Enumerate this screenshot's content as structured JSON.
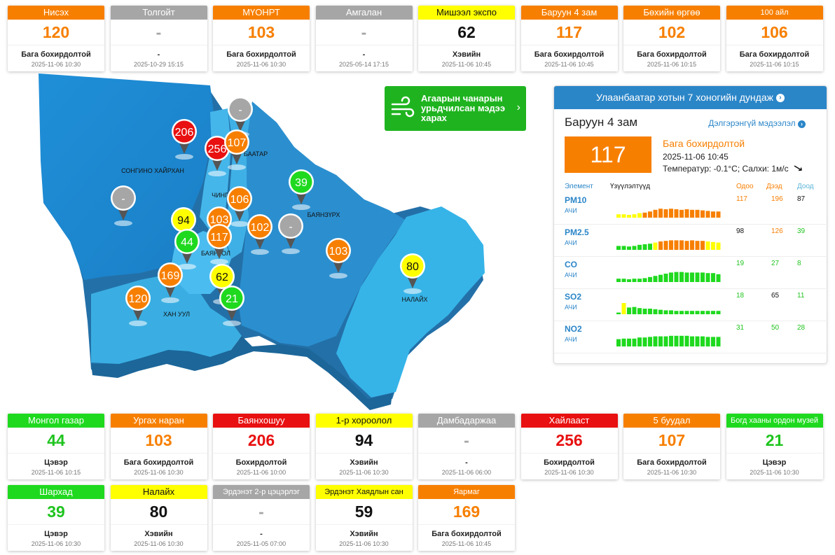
{
  "colors": {
    "good": "#1fd91f",
    "moderate": "#ffff00",
    "low": "#f77f00",
    "unhealthy": "#e81010",
    "nodata": "#a6a6a6"
  },
  "top_cards": [
    {
      "name": "Нисэх",
      "value": "120",
      "status": "Бага бохирдолтой",
      "time": "2025-11-06 10:30",
      "level": "low"
    },
    {
      "name": "Толгойт",
      "value": "-",
      "status": "-",
      "time": "2025-10-29 15:15",
      "level": "nodata"
    },
    {
      "name": "МҮОНРТ",
      "value": "103",
      "status": "Бага бохирдолтой",
      "time": "2025-11-06 10:30",
      "level": "low"
    },
    {
      "name": "Амгалан",
      "value": "-",
      "status": "-",
      "time": "2025-05-14 17:15",
      "level": "nodata"
    },
    {
      "name": "Мишээл экспо",
      "value": "62",
      "status": "Хэвийн",
      "time": "2025-11-06 10:45",
      "level": "moderate"
    },
    {
      "name": "Баруун 4 зам",
      "value": "117",
      "status": "Бага бохирдолтой",
      "time": "2025-11-06 10:45",
      "level": "low"
    },
    {
      "name": "Бөхийн өргөө",
      "value": "102",
      "status": "Бага бохирдолтой",
      "time": "2025-11-06 10:15",
      "level": "low"
    },
    {
      "name": "100 айл",
      "value": "106",
      "status": "Бага бохирдолтой",
      "time": "2025-11-06 10:15",
      "level": "low"
    }
  ],
  "bottom_cards_row1": [
    {
      "name": "Монгол газар",
      "value": "44",
      "status": "Цэвэр",
      "time": "2025-11-06 10:15",
      "level": "good"
    },
    {
      "name": "Ургах наран",
      "value": "103",
      "status": "Бага бохирдолтой",
      "time": "2025-11-06 10:30",
      "level": "low"
    },
    {
      "name": "Баянхошуу",
      "value": "206",
      "status": "Бохирдолтой",
      "time": "2025-11-06 10:00",
      "level": "unhealthy"
    },
    {
      "name": "1-р хороолол",
      "value": "94",
      "status": "Хэвийн",
      "time": "2025-11-06 10:30",
      "level": "moderate"
    },
    {
      "name": "Дамбадаржаа",
      "value": "-",
      "status": "-",
      "time": "2025-11-06 06:00",
      "level": "nodata"
    },
    {
      "name": "Хайлааст",
      "value": "256",
      "status": "Бохирдолтой",
      "time": "2025-11-06 10:30",
      "level": "unhealthy"
    },
    {
      "name": "5 буудал",
      "value": "107",
      "status": "Бага бохирдолтой",
      "time": "2025-11-06 10:30",
      "level": "low"
    },
    {
      "name": "Богд хааны ордон музей",
      "value": "21",
      "status": "Цэвэр",
      "time": "2025-11-06 10:30",
      "level": "good"
    }
  ],
  "bottom_cards_row2": [
    {
      "name": "Шархад",
      "value": "39",
      "status": "Цэвэр",
      "time": "2025-11-06 10:30",
      "level": "good"
    },
    {
      "name": "Налайх",
      "value": "80",
      "status": "Хэвийн",
      "time": "2025-11-06 10:30",
      "level": "moderate"
    },
    {
      "name": "Эрдэнэт 2-р цэцэрлэг",
      "value": "-",
      "status": "-",
      "time": "2025-11-05 07:00",
      "level": "nodata"
    },
    {
      "name": "Эрдэнэт Хаядлын сан",
      "value": "59",
      "status": "Хэвийн",
      "time": "2025-11-06 10:30",
      "level": "moderate"
    },
    {
      "name": "Яармаг",
      "value": "169",
      "status": "Бага бохирдолтой",
      "time": "2025-11-06 10:45",
      "level": "low"
    }
  ],
  "forecast": {
    "label": "Агаарын чанарын урьдчилсан мэдээ харах",
    "icon": "wind-icon"
  },
  "panel": {
    "header": "Улаанбаатар хотын 7 хоногийн дундаж",
    "station_name": "Баруун 4 зам",
    "more_label": "Дэлгэрэнгүй мэдээлэл",
    "value": "117",
    "status": "Бага бохирдолтой",
    "time": "2025-11-06 10:45",
    "weather": "Температур: -0.1°C; Салхи: 1м/с",
    "col_element": "Элемент",
    "col_indicator": "Үзүүлэлтүүд",
    "col_now": "Одоо",
    "col_high": "Дээд",
    "col_low": "Доод",
    "pollutants": [
      {
        "name": "PM10",
        "label": "АЧИ",
        "now": "117",
        "high": "196",
        "low": "87",
        "now_color": "#f77f00",
        "high_color": "#f77f00",
        "low_color": "#111111",
        "bars": [
          0.3,
          0.3,
          0.25,
          0.3,
          0.4,
          0.45,
          0.55,
          0.7,
          0.8,
          0.75,
          0.8,
          0.75,
          0.7,
          0.75,
          0.7,
          0.7,
          0.65,
          0.6,
          0.55,
          0.55
        ],
        "bar_colors": [
          "#ffff00",
          "#ffff00",
          "#ffff00",
          "#ffff00",
          "#ffff00",
          "#f77f00",
          "#f77f00",
          "#f77f00",
          "#f77f00",
          "#f77f00",
          "#f77f00",
          "#f77f00",
          "#f77f00",
          "#f77f00",
          "#f77f00",
          "#f77f00",
          "#f77f00",
          "#f77f00",
          "#f77f00",
          "#f77f00"
        ]
      },
      {
        "name": "PM2.5",
        "label": "АЧИ",
        "now": "98",
        "high": "126",
        "low": "39",
        "now_color": "#111111",
        "high_color": "#f77f00",
        "low_color": "#1fc41f",
        "bars": [
          0.35,
          0.35,
          0.3,
          0.35,
          0.45,
          0.5,
          0.55,
          0.65,
          0.75,
          0.8,
          0.85,
          0.85,
          0.85,
          0.8,
          0.85,
          0.8,
          0.8,
          0.75,
          0.7,
          0.65
        ],
        "bar_colors": [
          "#1fd91f",
          "#1fd91f",
          "#1fd91f",
          "#1fd91f",
          "#1fd91f",
          "#1fd91f",
          "#1fd91f",
          "#ffff00",
          "#f77f00",
          "#f77f00",
          "#f77f00",
          "#f77f00",
          "#f77f00",
          "#f77f00",
          "#f77f00",
          "#f77f00",
          "#f77f00",
          "#ffff00",
          "#ffff00",
          "#ffff00"
        ]
      },
      {
        "name": "CO",
        "label": "АЧИ",
        "now": "19",
        "high": "27",
        "low": "8",
        "now_color": "#1fc41f",
        "high_color": "#1fc41f",
        "low_color": "#1fc41f",
        "bars": [
          0.3,
          0.3,
          0.25,
          0.3,
          0.3,
          0.35,
          0.45,
          0.55,
          0.65,
          0.75,
          0.85,
          0.9,
          0.9,
          0.85,
          0.85,
          0.85,
          0.85,
          0.8,
          0.8,
          0.7
        ],
        "bar_colors": [
          "#1fd91f",
          "#1fd91f",
          "#1fd91f",
          "#1fd91f",
          "#1fd91f",
          "#1fd91f",
          "#1fd91f",
          "#1fd91f",
          "#1fd91f",
          "#1fd91f",
          "#1fd91f",
          "#1fd91f",
          "#1fd91f",
          "#1fd91f",
          "#1fd91f",
          "#1fd91f",
          "#1fd91f",
          "#1fd91f",
          "#1fd91f",
          "#1fd91f"
        ]
      },
      {
        "name": "SO2",
        "label": "АЧИ",
        "now": "18",
        "high": "65",
        "low": "11",
        "now_color": "#1fc41f",
        "high_color": "#111111",
        "low_color": "#1fc41f",
        "bars": [
          0.15,
          1.0,
          0.6,
          0.65,
          0.55,
          0.5,
          0.5,
          0.45,
          0.4,
          0.35,
          0.35,
          0.3,
          0.3,
          0.3,
          0.3,
          0.3,
          0.3,
          0.3,
          0.3,
          0.3
        ],
        "bar_colors": [
          "#1fd91f",
          "#ffff00",
          "#1fd91f",
          "#1fd91f",
          "#1fd91f",
          "#1fd91f",
          "#1fd91f",
          "#1fd91f",
          "#1fd91f",
          "#1fd91f",
          "#1fd91f",
          "#1fd91f",
          "#1fd91f",
          "#1fd91f",
          "#1fd91f",
          "#1fd91f",
          "#1fd91f",
          "#1fd91f",
          "#1fd91f",
          "#1fd91f"
        ]
      },
      {
        "name": "NO2",
        "label": "АЧИ",
        "now": "31",
        "high": "50",
        "low": "28",
        "now_color": "#1fc41f",
        "high_color": "#1fc41f",
        "low_color": "#1fc41f",
        "bars": [
          0.65,
          0.7,
          0.7,
          0.7,
          0.8,
          0.8,
          0.85,
          0.9,
          0.9,
          0.9,
          0.95,
          0.95,
          0.95,
          0.95,
          0.9,
          0.9,
          0.9,
          0.85,
          0.85,
          0.85
        ],
        "bar_colors": [
          "#1fd91f",
          "#1fd91f",
          "#1fd91f",
          "#1fd91f",
          "#1fd91f",
          "#1fd91f",
          "#1fd91f",
          "#1fd91f",
          "#1fd91f",
          "#1fd91f",
          "#1fd91f",
          "#1fd91f",
          "#1fd91f",
          "#1fd91f",
          "#1fd91f",
          "#1fd91f",
          "#1fd91f",
          "#1fd91f",
          "#1fd91f",
          "#1fd91f"
        ]
      }
    ]
  },
  "map": {
    "districts": [
      "СОНГИНО ХАЙРХАН",
      "БААТАР",
      "ЧИНГ",
      "БАЯНЗҮРХ",
      "БАЯНГОЛ",
      "ХАН УУЛ",
      "НАЛАЙХ"
    ],
    "pins": [
      {
        "value": "206",
        "level": "unhealthy"
      },
      {
        "value": "-",
        "level": "nodata"
      },
      {
        "value": "256",
        "level": "unhealthy"
      },
      {
        "value": "107",
        "level": "low"
      },
      {
        "value": "39",
        "level": "good"
      },
      {
        "value": "-",
        "level": "nodata"
      },
      {
        "value": "106",
        "level": "low"
      },
      {
        "value": "94",
        "level": "moderate"
      },
      {
        "value": "103",
        "level": "low"
      },
      {
        "value": "102",
        "level": "low"
      },
      {
        "value": "-",
        "level": "nodata"
      },
      {
        "value": "44",
        "level": "good"
      },
      {
        "value": "117",
        "level": "low"
      },
      {
        "value": "103",
        "level": "low"
      },
      {
        "value": "169",
        "level": "low"
      },
      {
        "value": "62",
        "level": "moderate"
      },
      {
        "value": "80",
        "level": "moderate"
      },
      {
        "value": "120",
        "level": "low"
      },
      {
        "value": "21",
        "level": "good"
      }
    ]
  }
}
